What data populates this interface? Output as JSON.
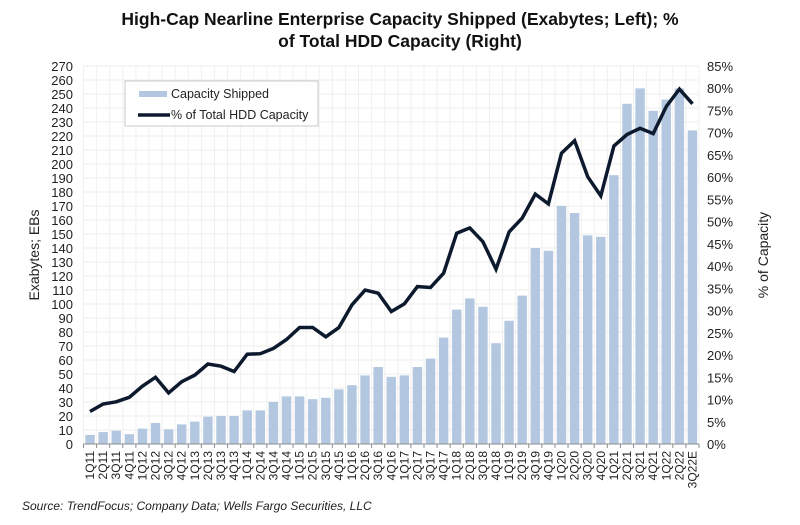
{
  "chart_data": {
    "type": "bar",
    "title_lines": [
      "High-Cap Nearline Enterprise Capacity Shipped (Exabytes; Left); %",
      "of Total HDD Capacity (Right)"
    ],
    "xlabel": "",
    "ylabel": "Exabytes; EBs",
    "y2label": "% of Capacity",
    "ylim": [
      0,
      270
    ],
    "y_ticks": [
      0,
      10,
      20,
      30,
      40,
      50,
      60,
      70,
      80,
      90,
      100,
      110,
      120,
      130,
      140,
      150,
      160,
      170,
      180,
      190,
      200,
      210,
      220,
      230,
      240,
      250,
      260,
      270
    ],
    "y2lim": [
      0,
      85
    ],
    "y2_ticks": [
      "0%",
      "5%",
      "10%",
      "15%",
      "20%",
      "25%",
      "30%",
      "35%",
      "40%",
      "45%",
      "50%",
      "55%",
      "60%",
      "65%",
      "70%",
      "75%",
      "80%",
      "85%"
    ],
    "grid": true,
    "legend_position": "top-left",
    "categories": [
      "1Q11",
      "2Q11",
      "3Q11",
      "4Q11",
      "1Q12",
      "2Q12",
      "3Q12",
      "4Q12",
      "1Q13",
      "2Q13",
      "3Q13",
      "4Q13",
      "1Q14",
      "2Q14",
      "3Q14",
      "4Q14",
      "1Q15",
      "2Q15",
      "3Q15",
      "4Q15",
      "1Q16",
      "2Q16",
      "3Q16",
      "4Q16",
      "1Q17",
      "2Q17",
      "3Q17",
      "4Q17",
      "1Q18",
      "2Q18",
      "3Q18",
      "4Q18",
      "1Q19",
      "2Q19",
      "3Q19",
      "4Q19",
      "1Q20",
      "2Q20",
      "3Q20",
      "4Q20",
      "1Q21",
      "2Q21",
      "3Q21",
      "4Q21",
      "1Q22",
      "2Q22",
      "3Q22E"
    ],
    "series": [
      {
        "name": "Capacity Shipped",
        "type": "bar",
        "axis": "left",
        "color": "#b4c7e0",
        "values": [
          6.5,
          8.5,
          9.5,
          7,
          11,
          15,
          10.5,
          14,
          16,
          19.5,
          20,
          20,
          24,
          24,
          30,
          34,
          34,
          32,
          33,
          39,
          42,
          49,
          55,
          48,
          49,
          55,
          61,
          76,
          96,
          104,
          98,
          72,
          88,
          106,
          140,
          138,
          170,
          165,
          149,
          148,
          192,
          243,
          254,
          238,
          246,
          254,
          224
        ]
      },
      {
        "name": "% of Total HDD Capacity",
        "type": "line",
        "axis": "right",
        "unit": "%",
        "color": "#0d1a2e",
        "values": [
          7.3,
          9,
          9.5,
          10.5,
          13,
          15,
          11.5,
          14,
          15.5,
          18,
          17.5,
          16.3,
          20.2,
          20.3,
          21.5,
          23.5,
          26.2,
          26.2,
          24.1,
          26.2,
          31.3,
          34.6,
          33.9,
          29.8,
          31.5,
          35.4,
          35.2,
          38.4,
          47.4,
          48.6,
          45.5,
          39.3,
          47.7,
          50.8,
          56.2,
          54,
          65.4,
          68.2,
          60.1,
          55.8,
          67,
          69.6,
          71,
          69.8,
          75.9,
          79.8,
          76.5
        ]
      }
    ],
    "source": "Source:  TrendFocus; Company Data; Wells Fargo Securities, LLC"
  }
}
